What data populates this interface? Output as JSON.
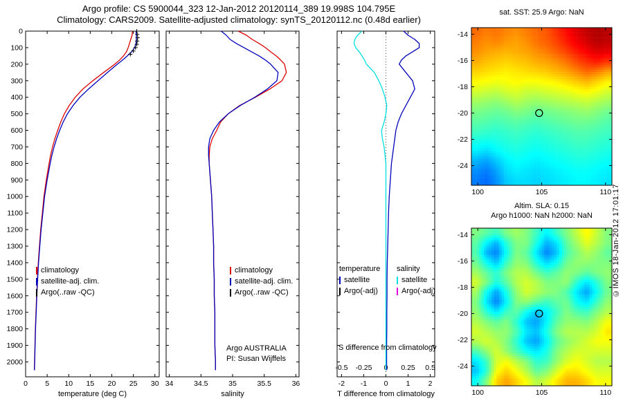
{
  "header": {
    "line1": "Argo profile: CS 5900044_323 12-Jan-2012 20120114_389 19.998S 104.795E",
    "line2": "Climatology: CARS2009. Satellite-adjusted climatology: synTS_20120112.nc (0.48d earlier)"
  },
  "watermark": "©IMOS 18-Jan-2012 17:01:17",
  "colors": {
    "red": "#dd0000",
    "blue": "#0000bb",
    "black": "#000000",
    "cyan": "#00e0e0",
    "magenta": "#dd00dd"
  },
  "legends": {
    "temp": {
      "entries": [
        {
          "label": "climatology"
        },
        {
          "label": "satellite-adj. clim."
        },
        {
          "label": "Argo(..raw -QC)"
        }
      ]
    },
    "sal": {
      "entries": [
        {
          "label": "climatology"
        },
        {
          "label": "satellite-adj. clim."
        },
        {
          "label": "Argo(..raw -QC)"
        }
      ]
    },
    "diff": {
      "temp_header": "temperature",
      "sal_header": "salinity",
      "temp_entries": [
        {
          "label": "satellite"
        },
        {
          "label": "Argo(-adj)"
        }
      ],
      "sal_entries": [
        {
          "label": "satellite"
        },
        {
          "label": "Argo(-adj)"
        }
      ]
    },
    "note_line1": "Argo AUSTRALIA",
    "note_line2": "PI: Susan Wijffels",
    "s_diff_label": "S difference from climatology"
  },
  "colormap": {
    "positions": [
      0,
      0.125,
      0.375,
      0.625,
      0.875,
      1
    ],
    "colors": [
      "#00008f",
      "#0000ff",
      "#00ffff",
      "#ffff00",
      "#ff0000",
      "#7f0000"
    ]
  },
  "chart_data": [
    {
      "type": "line",
      "xlabel": "temperature (deg C)",
      "xlim": [
        0,
        31
      ],
      "ylim": [
        0,
        2090
      ],
      "xticks": [
        0,
        5,
        10,
        15,
        20,
        25,
        30
      ],
      "yticks": [
        0,
        100,
        200,
        300,
        400,
        500,
        600,
        700,
        800,
        900,
        1000,
        1100,
        1200,
        1300,
        1400,
        1500,
        1600,
        1700,
        1800,
        1900,
        2000
      ],
      "ytick_labels": true,
      "depth": [
        0,
        25,
        50,
        75,
        100,
        125,
        150,
        175,
        200,
        250,
        300,
        350,
        400,
        450,
        500,
        550,
        600,
        650,
        700,
        750,
        800,
        900,
        1000,
        1100,
        1200,
        1300,
        1400,
        1500,
        1600,
        1700,
        1800,
        1900,
        2000,
        2050
      ],
      "series": [
        {
          "name": "climatology",
          "color": "#dd0000",
          "values": [
            24.8,
            24.7,
            24.4,
            24.1,
            23.8,
            23.4,
            22.7,
            21.8,
            20.7,
            18.1,
            15.6,
            13.3,
            11.5,
            10.1,
            9.0,
            8.15,
            7.45,
            6.8,
            6.25,
            5.8,
            5.45,
            4.8,
            4.25,
            3.88,
            3.5,
            3.22,
            2.94,
            2.75,
            2.55,
            2.41,
            2.26,
            2.17,
            2.07,
            2.02
          ]
        },
        {
          "name": "satellite-adj-clim",
          "color": "#0000bb",
          "values": [
            25.6,
            25.7,
            25.7,
            25.6,
            25.3,
            24.6,
            23.6,
            22.5,
            21.3,
            19.0,
            16.8,
            14.6,
            12.6,
            11.0,
            9.7,
            8.7,
            7.9,
            7.2,
            6.6,
            6.1,
            5.7,
            5.0,
            4.4,
            4.0,
            3.6,
            3.3,
            3.0,
            2.8,
            2.6,
            2.45,
            2.3,
            2.2,
            2.1,
            2.05
          ]
        },
        {
          "name": "argo-raw-qc",
          "color": "#000000",
          "marker": "plus",
          "depth": [
            0,
            20,
            40,
            60,
            80,
            100,
            120,
            140
          ],
          "values": [
            25.8,
            25.9,
            26.0,
            25.9,
            25.8,
            25.5,
            25.0,
            24.3
          ]
        }
      ]
    },
    {
      "type": "line",
      "xlabel": "salinity",
      "xlim": [
        33.95,
        36.05
      ],
      "ylim": [
        0,
        2090
      ],
      "xticks": [
        34,
        34.5,
        35,
        35.5,
        36
      ],
      "yticks": [
        0,
        100,
        200,
        300,
        400,
        500,
        600,
        700,
        800,
        900,
        1000,
        1100,
        1200,
        1300,
        1400,
        1500,
        1600,
        1700,
        1800,
        1900,
        2000
      ],
      "ytick_labels": false,
      "depth": [
        0,
        25,
        50,
        75,
        100,
        125,
        150,
        175,
        200,
        250,
        300,
        350,
        400,
        450,
        500,
        550,
        600,
        650,
        700,
        750,
        800,
        900,
        1000,
        1100,
        1200,
        1300,
        1400,
        1500,
        1600,
        1700,
        1800,
        1900,
        2000,
        2050
      ],
      "series": [
        {
          "name": "climatology",
          "color": "#dd0000",
          "values": [
            35.09,
            35.22,
            35.31,
            35.42,
            35.52,
            35.6,
            35.69,
            35.76,
            35.82,
            35.85,
            35.78,
            35.59,
            35.36,
            35.11,
            34.93,
            34.81,
            34.75,
            34.68,
            34.64,
            34.63,
            34.63,
            34.65,
            34.67,
            34.68,
            34.69,
            34.7,
            34.7,
            34.71,
            34.71,
            34.72,
            34.72,
            34.72,
            34.73,
            34.73
          ]
        },
        {
          "name": "satellite-adj-clim",
          "color": "#0000bb",
          "values": [
            34.82,
            34.9,
            34.96,
            35.06,
            35.18,
            35.3,
            35.42,
            35.52,
            35.6,
            35.72,
            35.7,
            35.55,
            35.35,
            35.12,
            34.93,
            34.79,
            34.7,
            34.64,
            34.62,
            34.62,
            34.63,
            34.65,
            34.67,
            34.68,
            34.69,
            34.7,
            34.7,
            34.71,
            34.71,
            34.72,
            34.72,
            34.72,
            34.73,
            34.73
          ]
        }
      ]
    },
    {
      "type": "line",
      "xlabel": "T difference from climatology",
      "xlim": [
        -2.2,
        2.2
      ],
      "ylim": [
        0,
        2090
      ],
      "xticks": [
        -2,
        -1,
        0,
        1,
        2
      ],
      "s_ticks": [
        "-0.5",
        "-0.25",
        "0",
        "0.25",
        "0.5"
      ],
      "yticks": [
        0,
        100,
        200,
        300,
        400,
        500,
        600,
        700,
        800,
        900,
        1000,
        1100,
        1200,
        1300,
        1400,
        1500,
        1600,
        1700,
        1800,
        1900,
        2000
      ],
      "ytick_labels": false,
      "zero_line": true,
      "depth": [
        0,
        25,
        50,
        75,
        100,
        125,
        150,
        175,
        200,
        250,
        300,
        350,
        400,
        450,
        500,
        550,
        600,
        650,
        700,
        750,
        800,
        900,
        1000,
        1100,
        1200,
        1300,
        1400,
        1500,
        1600,
        1700,
        1800,
        1900,
        2000,
        2050
      ],
      "series": [
        {
          "name": "t-diff-satellite",
          "color": "#0000bb",
          "values": [
            0.8,
            1.0,
            1.3,
            1.5,
            1.5,
            1.2,
            0.9,
            0.7,
            0.6,
            0.9,
            1.2,
            1.3,
            1.1,
            0.9,
            0.7,
            0.55,
            0.45,
            0.4,
            0.35,
            0.3,
            0.25,
            0.2,
            0.15,
            0.12,
            0.1,
            0.08,
            0.06,
            0.05,
            0.05,
            0.04,
            0.04,
            0.03,
            0.03,
            0.03
          ]
        },
        {
          "name": "s-diff-satellite",
          "color": "#00e0e0",
          "xscale": 4,
          "values": [
            -0.27,
            -0.32,
            -0.35,
            -0.36,
            -0.34,
            -0.3,
            -0.27,
            -0.24,
            -0.22,
            -0.13,
            -0.08,
            -0.04,
            -0.01,
            0.01,
            0.0,
            -0.02,
            -0.05,
            -0.04,
            -0.02,
            -0.01,
            0.0,
            0.0,
            0.0,
            0.0,
            0.0,
            0.0,
            0.0,
            0.0,
            0.0,
            0.0,
            0.0,
            0.0,
            0.0,
            0.0
          ]
        }
      ]
    },
    {
      "type": "heatmap",
      "title": "sat. SST: 25.9 Argo: NaN",
      "lon_range": [
        99.5,
        110.5
      ],
      "lat_range": [
        -25.5,
        -13.5
      ],
      "lon_ticks": [
        100,
        105,
        110
      ],
      "lat_ticks": [
        -14,
        -16,
        -18,
        -20,
        -22,
        -24
      ],
      "vmin": 19.5,
      "vmax": 30,
      "marker": {
        "lon": 104.8,
        "lat": -20.0
      },
      "grid": [
        [
          27.6,
          27.4,
          27.5,
          27.3,
          27.2,
          27.4,
          27.6,
          27.8,
          28.2,
          28.6,
          29.0,
          29.3,
          29.5,
          29.4
        ],
        [
          27.4,
          27.2,
          27.3,
          27.1,
          27.0,
          27.2,
          27.5,
          27.7,
          28.0,
          28.4,
          28.8,
          29.1,
          29.4,
          29.3
        ],
        [
          27.2,
          27.0,
          26.9,
          26.8,
          26.9,
          27.0,
          27.2,
          27.4,
          27.7,
          28.0,
          28.4,
          28.7,
          29.0,
          28.9
        ],
        [
          26.9,
          26.7,
          26.6,
          26.5,
          26.6,
          26.7,
          26.9,
          27.0,
          27.2,
          27.5,
          27.9,
          28.2,
          28.4,
          28.1
        ],
        [
          26.5,
          26.4,
          26.3,
          26.2,
          26.3,
          26.4,
          26.5,
          26.6,
          26.8,
          27.0,
          27.3,
          27.6,
          27.4,
          27.0
        ],
        [
          26.1,
          26.0,
          25.9,
          26.0,
          26.1,
          26.0,
          26.0,
          26.1,
          26.2,
          26.4,
          26.6,
          26.8,
          26.5,
          26.2
        ],
        [
          25.6,
          25.5,
          25.4,
          25.6,
          25.7,
          25.5,
          25.5,
          25.6,
          25.7,
          25.8,
          26.0,
          26.1,
          25.9,
          25.6
        ],
        [
          25.1,
          25.0,
          24.9,
          25.1,
          25.3,
          25.1,
          25.0,
          25.1,
          25.2,
          25.3,
          25.4,
          25.5,
          25.3,
          25.1
        ],
        [
          24.7,
          24.6,
          24.5,
          24.6,
          24.8,
          24.7,
          24.5,
          24.6,
          24.7,
          24.8,
          24.9,
          25.0,
          24.8,
          24.6
        ],
        [
          24.4,
          24.3,
          24.2,
          24.3,
          24.4,
          24.3,
          24.2,
          24.3,
          24.4,
          24.5,
          24.6,
          24.6,
          24.5,
          24.3
        ],
        [
          24.1,
          24.0,
          23.9,
          24.0,
          24.1,
          24.0,
          23.9,
          24.0,
          24.1,
          24.2,
          24.3,
          24.3,
          24.2,
          24.1
        ],
        [
          23.7,
          23.6,
          23.7,
          23.8,
          23.9,
          23.8,
          23.7,
          23.8,
          23.9,
          24.0,
          24.1,
          24.1,
          24.0,
          23.9
        ],
        [
          23.3,
          23.1,
          23.4,
          23.6,
          23.7,
          23.6,
          23.5,
          23.6,
          23.7,
          23.8,
          23.9,
          23.9,
          23.8,
          23.7
        ],
        [
          22.7,
          22.5,
          22.9,
          23.3,
          23.5,
          23.4,
          23.3,
          23.4,
          23.5,
          23.6,
          23.7,
          23.7,
          23.6,
          23.5
        ],
        [
          22.3,
          22.1,
          22.5,
          23.1,
          23.3,
          23.2,
          23.1,
          23.2,
          23.3,
          23.4,
          23.5,
          23.5,
          23.4,
          23.3
        ],
        [
          22.1,
          21.9,
          22.3,
          22.9,
          23.1,
          23.1,
          23.0,
          23.1,
          23.2,
          23.3,
          23.4,
          23.4,
          23.3,
          23.2
        ]
      ]
    },
    {
      "type": "heatmap",
      "title_line1": "Altim. SLA: 0.15",
      "title_line2": "Argo h1000: NaN h2000: NaN",
      "lon_range": [
        99.5,
        110.5
      ],
      "lat_range": [
        -25.5,
        -13.5
      ],
      "lon_ticks": [
        100,
        105,
        110
      ],
      "lat_ticks": [
        -14,
        -16,
        -18,
        -20,
        -22,
        -24
      ],
      "vmin": -0.3,
      "vmax": 0.3,
      "marker": {
        "lon": 104.8,
        "lat": -20.0
      },
      "grid": [
        [
          0.0,
          -0.02,
          -0.04,
          0.0,
          0.02,
          0.0,
          -0.04,
          -0.08,
          -0.04,
          0.0,
          0.04,
          0.08,
          0.04,
          0.0
        ],
        [
          -0.02,
          -0.08,
          -0.12,
          -0.05,
          0.0,
          0.0,
          -0.06,
          -0.12,
          -0.09,
          -0.02,
          0.02,
          0.06,
          0.03,
          0.0
        ],
        [
          -0.03,
          -0.12,
          -0.15,
          -0.07,
          0.0,
          -0.02,
          -0.09,
          -0.15,
          -0.11,
          -0.03,
          0.0,
          0.03,
          0.01,
          -0.02
        ],
        [
          -0.01,
          -0.07,
          -0.11,
          -0.04,
          0.01,
          0.0,
          -0.06,
          -0.1,
          -0.07,
          -0.01,
          0.01,
          0.01,
          0.0,
          0.0
        ],
        [
          0.02,
          -0.02,
          -0.05,
          0.0,
          0.03,
          0.03,
          -0.01,
          -0.04,
          -0.02,
          0.01,
          0.0,
          -0.02,
          0.0,
          0.01
        ],
        [
          0.05,
          0.0,
          -0.06,
          -0.02,
          0.03,
          0.05,
          0.03,
          0.0,
          0.0,
          0.01,
          -0.05,
          -0.09,
          -0.05,
          0.0
        ],
        [
          0.02,
          -0.07,
          -0.13,
          -0.06,
          0.01,
          0.05,
          0.03,
          0.01,
          0.0,
          -0.03,
          -0.09,
          -0.13,
          -0.07,
          -0.01
        ],
        [
          0.0,
          -0.09,
          -0.15,
          -0.08,
          0.0,
          0.01,
          -0.02,
          -0.04,
          -0.02,
          -0.01,
          -0.07,
          -0.09,
          -0.04,
          0.01
        ],
        [
          0.01,
          -0.05,
          -0.09,
          -0.04,
          -0.02,
          -0.07,
          -0.11,
          -0.08,
          -0.04,
          0.0,
          -0.03,
          -0.04,
          0.0,
          0.03
        ],
        [
          0.03,
          0.0,
          -0.02,
          0.0,
          -0.05,
          -0.11,
          -0.13,
          -0.08,
          -0.02,
          0.01,
          0.01,
          0.0,
          0.03,
          0.07
        ],
        [
          0.05,
          0.03,
          0.01,
          0.01,
          -0.03,
          -0.09,
          -0.11,
          -0.06,
          0.0,
          0.03,
          0.03,
          0.03,
          0.05,
          0.09
        ],
        [
          0.03,
          0.05,
          0.03,
          0.0,
          -0.05,
          -0.11,
          -0.13,
          -0.08,
          -0.02,
          0.01,
          0.03,
          0.05,
          0.07,
          0.07
        ],
        [
          -0.03,
          0.01,
          0.05,
          0.01,
          -0.03,
          -0.07,
          -0.09,
          -0.06,
          0.0,
          0.03,
          0.05,
          0.05,
          0.05,
          0.05
        ],
        [
          -0.09,
          -0.04,
          0.05,
          0.07,
          0.03,
          0.0,
          -0.05,
          -0.04,
          0.01,
          0.05,
          0.07,
          0.05,
          0.03,
          0.03
        ],
        [
          -0.11,
          -0.05,
          0.07,
          0.1,
          0.07,
          0.03,
          -0.02,
          0.0,
          0.05,
          0.09,
          0.09,
          0.07,
          0.05,
          0.05
        ],
        [
          -0.07,
          0.0,
          0.1,
          0.13,
          0.1,
          0.07,
          0.03,
          0.05,
          0.09,
          0.12,
          0.12,
          0.1,
          0.07,
          0.07
        ]
      ]
    }
  ]
}
